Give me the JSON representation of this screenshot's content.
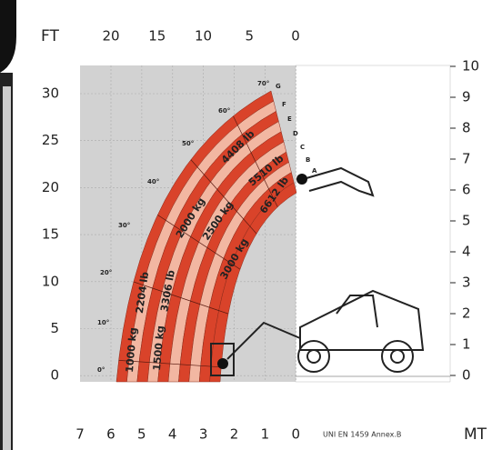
{
  "axes": {
    "top_unit": "FT",
    "top_ticks": [
      "20",
      "15",
      "10",
      "5",
      "0"
    ],
    "left_ticks": [
      "30",
      "25",
      "20",
      "15",
      "10",
      "5",
      "0"
    ],
    "right_ticks": [
      "10",
      "9",
      "8",
      "7",
      "6",
      "5",
      "4",
      "3",
      "2",
      "1",
      "0"
    ],
    "bottom_ticks": [
      "7",
      "6",
      "5",
      "4",
      "3",
      "2",
      "1",
      "0"
    ],
    "bottom_unit": "MT"
  },
  "standard": "UNI EN 1459 Annex.B",
  "boom_angles": [
    "0°",
    "10°",
    "20°",
    "30°",
    "40°",
    "50°",
    "60°",
    "70°"
  ],
  "extension_letters": [
    "A",
    "B",
    "C",
    "D",
    "E",
    "F",
    "G"
  ],
  "load_zones": [
    {
      "kg": "1000 kg",
      "lb": "2204 lb"
    },
    {
      "kg": "1500 kg",
      "lb": "3306 lb"
    },
    {
      "kg": "2000 kg",
      "lb": "4408 lb"
    },
    {
      "kg": "2500 kg",
      "lb": "5510 lb"
    },
    {
      "kg": "3000 kg",
      "lb": "6612 lb"
    }
  ]
}
